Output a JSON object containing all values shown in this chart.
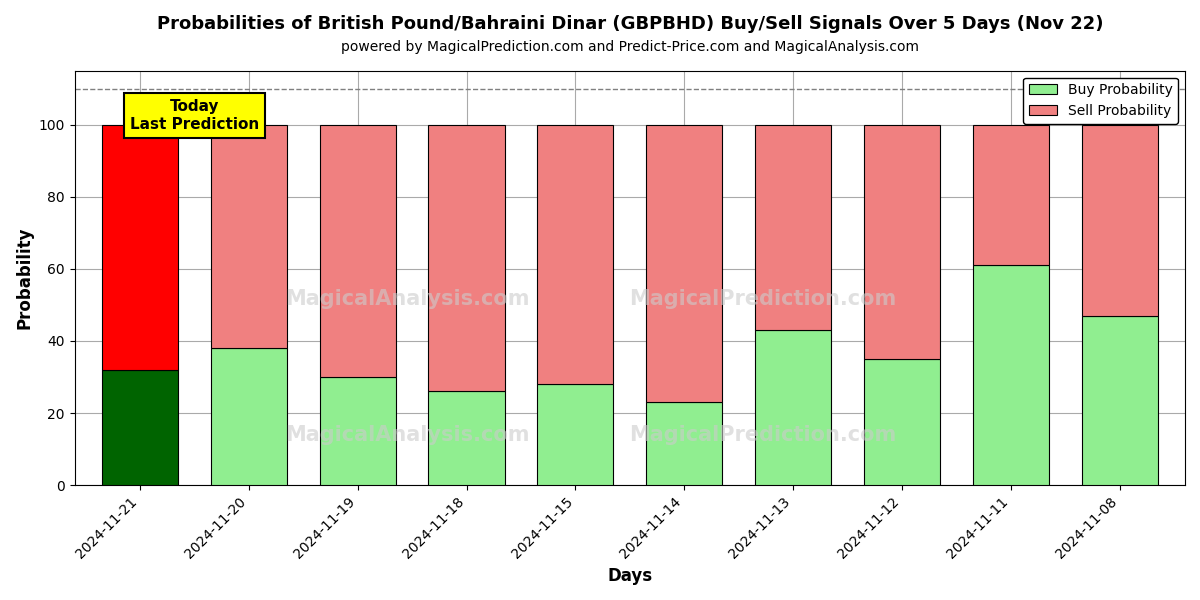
{
  "title": "Probabilities of British Pound/Bahraini Dinar (GBPBHD) Buy/Sell Signals Over 5 Days (Nov 22)",
  "subtitle": "powered by MagicalPrediction.com and Predict-Price.com and MagicalAnalysis.com",
  "xlabel": "Days",
  "ylabel": "Probability",
  "categories": [
    "2024-11-21",
    "2024-11-20",
    "2024-11-19",
    "2024-11-18",
    "2024-11-15",
    "2024-11-14",
    "2024-11-13",
    "2024-11-12",
    "2024-11-11",
    "2024-11-08"
  ],
  "buy_values": [
    32,
    38,
    30,
    26,
    28,
    23,
    43,
    35,
    61,
    47
  ],
  "sell_values": [
    68,
    62,
    70,
    74,
    72,
    77,
    57,
    65,
    39,
    53
  ],
  "today_buy_color": "#006400",
  "today_sell_color": "#FF0000",
  "buy_color": "#90EE90",
  "sell_color": "#F08080",
  "today_label_text": "Today\nLast Prediction",
  "today_label_bg": "#FFFF00",
  "legend_buy_label": "Buy Probability",
  "legend_sell_label": "Sell Probability",
  "dashed_line_y": 110,
  "ylim": [
    0,
    115
  ],
  "yticks": [
    0,
    20,
    40,
    60,
    80,
    100
  ],
  "background_color": "#ffffff",
  "grid_color": "#aaaaaa",
  "watermark_color": "#cccccc"
}
